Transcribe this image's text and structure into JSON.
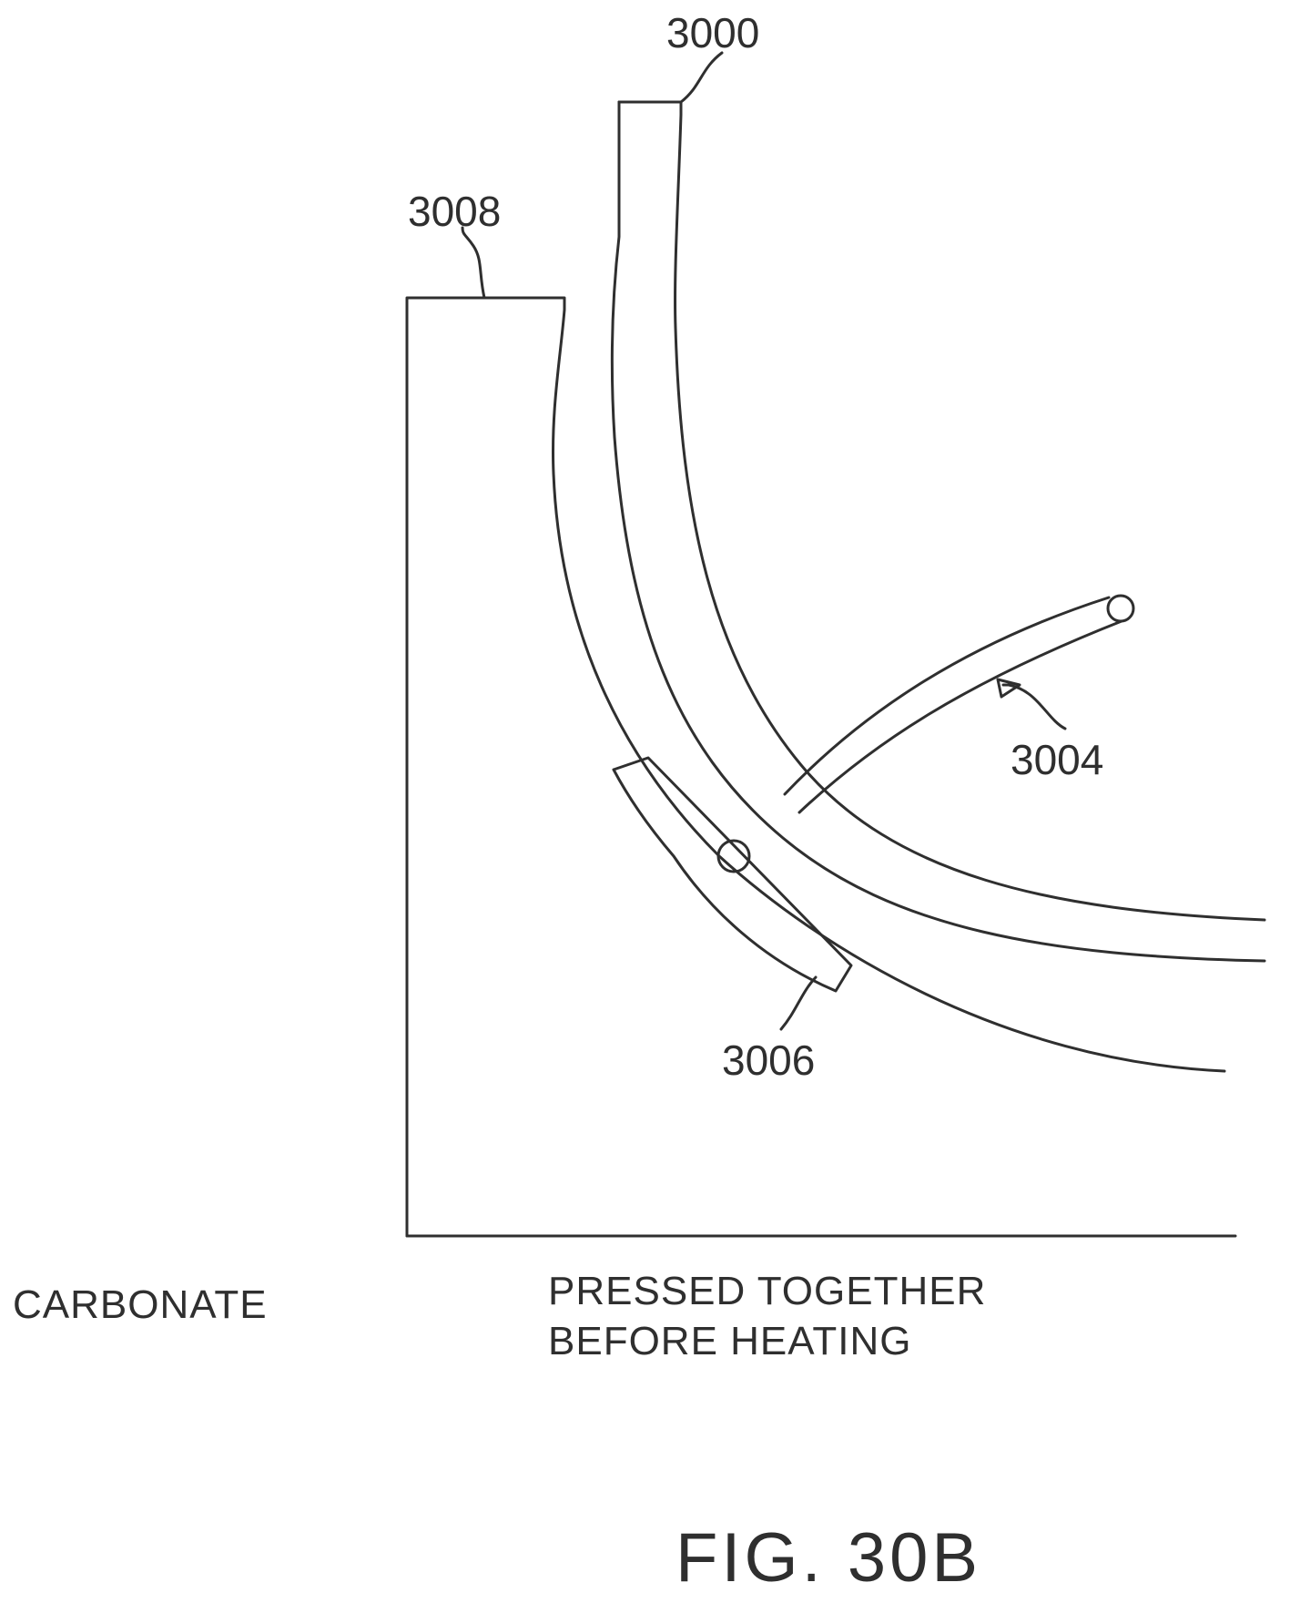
{
  "labels": {
    "ref_3000": "3000",
    "ref_3008": "3008",
    "ref_3004": "3004",
    "ref_3006": "3006"
  },
  "captions": {
    "left": "CARBONATE",
    "right_line1": "PRESSED TOGETHER",
    "right_line2": "BEFORE HEATING"
  },
  "figure_label": "FIG. 30B"
}
